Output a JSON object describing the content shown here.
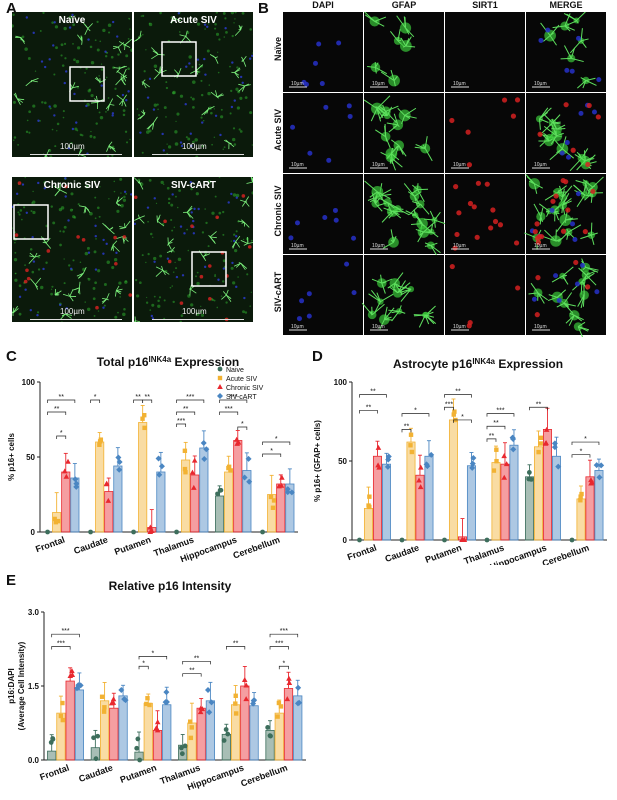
{
  "panels": {
    "a": {
      "letter": "A",
      "labels": [
        "Naïve",
        "Acute SIV",
        "Chronic SIV",
        "SIV-cART"
      ],
      "scale": "100µm"
    },
    "b": {
      "letter": "B",
      "columns": [
        "DAPI",
        "GFAP",
        "SIRT1",
        "MERGE"
      ],
      "rows": [
        "Naïve",
        "Acute SIV",
        "Chronic SIV",
        "SIV-cART"
      ],
      "scale": "10µm"
    },
    "c": {
      "letter": "C"
    },
    "d": {
      "letter": "D"
    },
    "e": {
      "letter": "E"
    }
  },
  "colors": {
    "naive": "#3d6e5c",
    "acute": "#f2b233",
    "chronic": "#e8282f",
    "cart": "#4a86c2"
  },
  "chart_data": [
    {
      "id": "c",
      "type": "bar",
      "title": "Total p16",
      "title_sup": "INK4a",
      "title_suffix": " Expression",
      "ylabel": "% p16+ cells",
      "ylim": [
        0,
        100
      ],
      "yticks": [
        0,
        50,
        100
      ],
      "categories": [
        "Frontal",
        "Caudate",
        "Putamen",
        "Thalamus",
        "Hippocampus",
        "Cerebellum"
      ],
      "legend": [
        "Naive",
        "Acute SIV",
        "Chronic SIV",
        "SIV-cART"
      ],
      "legend_position": "top-right",
      "series": [
        {
          "name": "Naive",
          "values": [
            0,
            0,
            0,
            0,
            24,
            0
          ]
        },
        {
          "name": "Acute SIV",
          "values": [
            13,
            60,
            73,
            48,
            40,
            25
          ]
        },
        {
          "name": "Chronic SIV",
          "values": [
            40,
            27,
            3,
            38,
            61,
            32
          ]
        },
        {
          "name": "SIV-cART",
          "values": [
            36,
            44,
            40,
            56,
            41,
            32
          ]
        }
      ]
    },
    {
      "id": "d",
      "type": "bar",
      "title": "Astrocyte p16",
      "title_sup": "INK4a",
      "title_suffix": " Expression",
      "ylabel": "% p16+ (GFAP+ cells)",
      "ylim": [
        0,
        100
      ],
      "yticks": [
        0,
        50,
        100
      ],
      "categories": [
        "Frontal",
        "Caudate",
        "Putamen",
        "Thalamus",
        "Hippocampus",
        "Cerebellum"
      ],
      "series": [
        {
          "name": "Naive",
          "values": [
            0,
            0,
            0,
            0,
            40,
            0
          ]
        },
        {
          "name": "Acute SIV",
          "values": [
            20,
            62,
            76,
            49,
            59,
            26
          ]
        },
        {
          "name": "Chronic SIV",
          "values": [
            53,
            41,
            2,
            48,
            70,
            40
          ]
        },
        {
          "name": "SIV-cART",
          "values": [
            48,
            53,
            47,
            60,
            53,
            44
          ]
        }
      ]
    },
    {
      "id": "e",
      "type": "bar",
      "title": "Relative p16 Intensity",
      "ylabel_lines": [
        "p16:DAPI",
        "(Average Cell Intensity)"
      ],
      "ylim": [
        0,
        3.0
      ],
      "yticks": [
        0.0,
        1.5,
        3.0
      ],
      "categories": [
        "Frontal",
        "Caudate",
        "Putamen",
        "Thalamus",
        "Hippocampus",
        "Cerebellum"
      ],
      "series": [
        {
          "name": "Naive",
          "values": [
            0.18,
            0.25,
            0.16,
            0.3,
            0.52,
            0.6
          ]
        },
        {
          "name": "Acute SIV",
          "values": [
            0.95,
            1.2,
            1.15,
            0.75,
            1.12,
            0.95
          ]
        },
        {
          "name": "Chronic SIV",
          "values": [
            1.6,
            1.05,
            0.6,
            1.05,
            1.5,
            1.45
          ]
        },
        {
          "name": "SIV-cART",
          "values": [
            1.42,
            1.3,
            1.12,
            1.2,
            1.1,
            1.3
          ]
        }
      ]
    }
  ]
}
